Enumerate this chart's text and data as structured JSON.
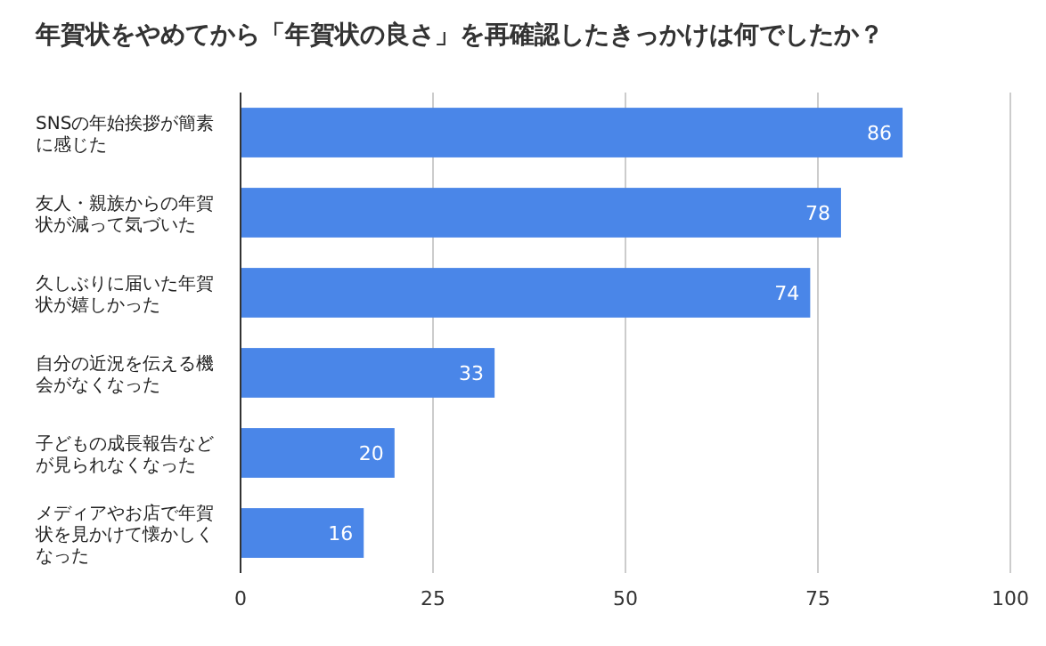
{
  "chart_data": {
    "type": "bar",
    "orientation": "horizontal",
    "title": "年賀状をやめてから「年賀状の良さ」を再確認したきっかけは何でしたか？",
    "categories": [
      "SNSの年始挨拶が簡素に感じた",
      "友人・親族からの年賀状が減って気づいた",
      "久しぶりに届いた年賀状が嬉しかった",
      "自分の近況を伝える機会がなくなった",
      "子どもの成長報告などが見られなくなった",
      "メディアやお店で年賀状を見かけて懐かしくなった"
    ],
    "values": [
      86,
      78,
      74,
      33,
      20,
      16
    ],
    "color": "#4a86e8",
    "xlim": [
      0,
      100
    ],
    "xticks": [
      0,
      25,
      50,
      75,
      100
    ],
    "grid": "x",
    "data_labels": true
  }
}
